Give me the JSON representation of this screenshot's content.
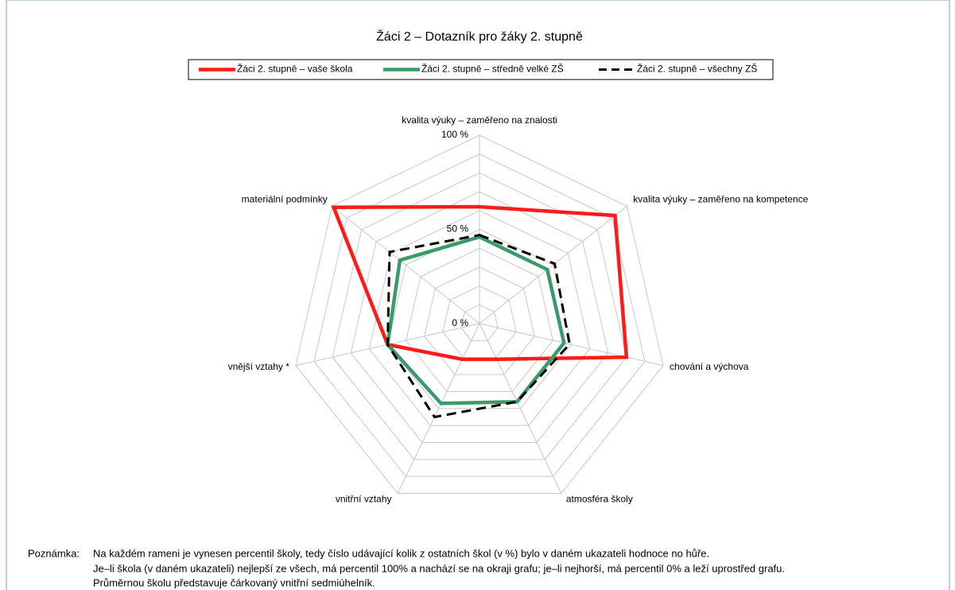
{
  "chart_data": {
    "type": "radar",
    "title": "Žáci 2 – Dotazník pro žáky 2. stupně",
    "categories": [
      "kvalita výuky – zaměřeno na znalosti",
      "kvalita výuky – zaměřeno na kompetence",
      "chování a výchova",
      "atmosféra školy",
      "vnitřní vztahy",
      "vnější vztahy *",
      "materiální podmínky"
    ],
    "series": [
      {
        "name": "Žáci 2. stupně – vaše škola",
        "color": "#ff1a1a",
        "style": "solid",
        "values": [
          62,
          92,
          80,
          21,
          21,
          50,
          99
        ]
      },
      {
        "name": "Žáci 2. stupně – středně velké ZŠ",
        "color": "#3a9a6a",
        "style": "solid",
        "values": [
          46,
          46,
          46,
          46,
          47,
          50,
          54
        ]
      },
      {
        "name": "Žáci 2. stupně – všechny ZŠ",
        "color": "#000000",
        "style": "dashed",
        "values": [
          47,
          51,
          49,
          46,
          55,
          50,
          61
        ]
      }
    ],
    "ylim": [
      0,
      100
    ],
    "yticks": [
      {
        "value": 0,
        "label": "0 %"
      },
      {
        "value": 50,
        "label": "50 %"
      },
      {
        "value": 100,
        "label": "100 %"
      }
    ],
    "minor_yticks": [
      10,
      20,
      30,
      40,
      60,
      70,
      80,
      90
    ],
    "grid": true,
    "legend": "top"
  },
  "note": {
    "label": "Poznámka:",
    "lines": [
      "Na každém rameni je vynesen percentil školy, tedy číslo udávající kolik z ostatních škol (v %) bylo v daném ukazateli hodnoce no hůře.",
      "Je–li škola (v daném ukazateli) nejlepší ze všech, má percentil 100% a nachází se na okraji grafu; je–li nejhorší, má percentil 0% a leží uprostřed grafu.",
      "Průměrnou školu představuje čárkovaný vnitřní sedmiúhelník."
    ]
  }
}
